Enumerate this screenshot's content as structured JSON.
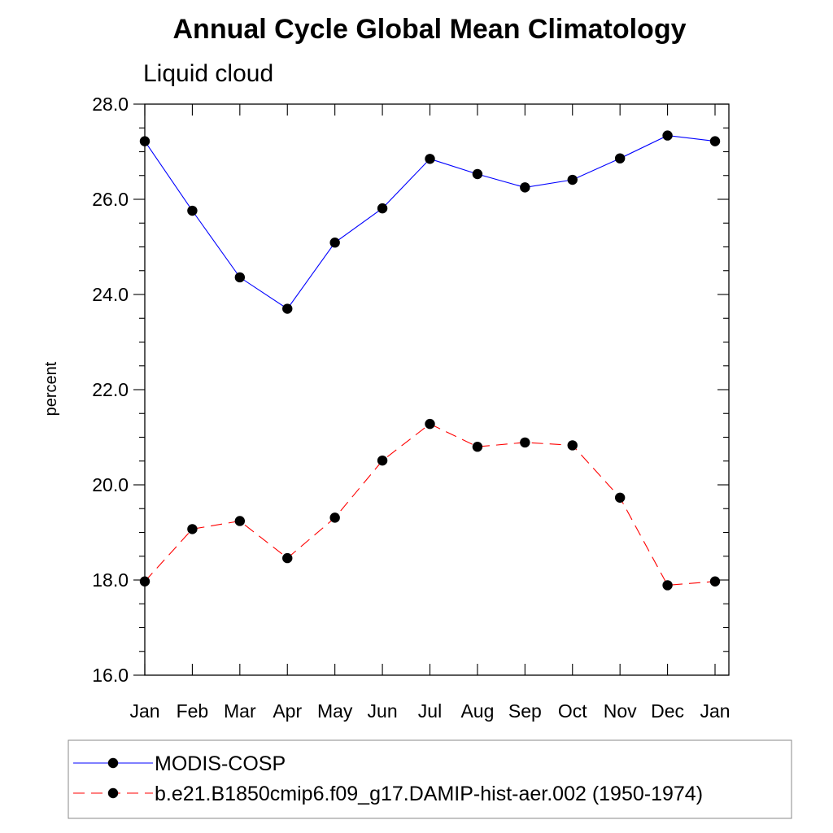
{
  "chart_data": {
    "type": "line",
    "title": "Annual Cycle Global Mean Climatology",
    "subtitle": "Liquid cloud",
    "xlabel": "",
    "ylabel": "percent",
    "categories": [
      "Jan",
      "Feb",
      "Mar",
      "Apr",
      "May",
      "Jun",
      "Jul",
      "Aug",
      "Sep",
      "Oct",
      "Nov",
      "Dec",
      "Jan"
    ],
    "ylim": [
      16.0,
      28.0
    ],
    "yticks": [
      "16.0",
      "18.0",
      "20.0",
      "22.0",
      "24.0",
      "26.0",
      "28.0"
    ],
    "yticks_values": [
      16,
      18,
      20,
      22,
      24,
      26,
      28
    ],
    "grid": false,
    "legend_position": "bottom",
    "series": [
      {
        "name": "MODIS-COSP",
        "color": "#0000ff",
        "style": "solid",
        "marker": "filled-circle",
        "values": [
          27.22,
          25.76,
          24.36,
          23.7,
          25.09,
          25.81,
          26.85,
          26.53,
          26.25,
          26.41,
          26.86,
          27.34,
          27.22
        ]
      },
      {
        "name": "b.e21.B1850cmip6.f09_g17.DAMIP-hist-aer.002 (1950-1974)",
        "color": "#ff0000",
        "style": "dashed",
        "marker": "filled-circle",
        "values": [
          17.97,
          19.07,
          19.24,
          18.46,
          19.31,
          20.51,
          21.28,
          20.8,
          20.89,
          20.83,
          19.73,
          17.89,
          17.97
        ]
      }
    ]
  }
}
